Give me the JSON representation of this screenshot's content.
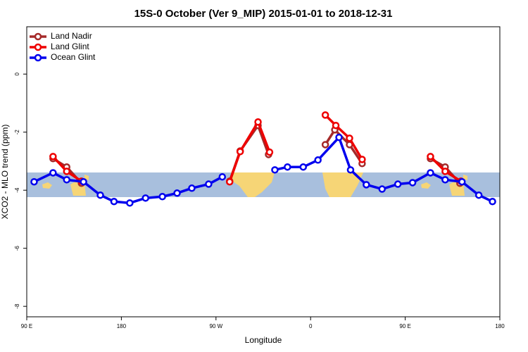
{
  "chart_data": {
    "type": "line",
    "title": "15S-0 October (Ver 9_MIP)   2015-01-01 to 2018-12-31",
    "x_label": "Longitude",
    "y_label": "XCO2 - MLO trend (ppm)",
    "xlim": [
      90,
      540
    ],
    "xticks": [
      {
        "value": 90,
        "label": "90 E"
      },
      180,
      {
        "value": 270,
        "label": "90 W"
      },
      {
        "value": 360,
        "label": "0"
      },
      {
        "value": 450,
        "label": "90 E"
      },
      {
        "value": 540,
        "label": "180"
      }
    ],
    "ylim": [
      -8.36,
      1.63
    ],
    "yticks": [
      0,
      -2,
      -4,
      -6,
      -8
    ],
    "legend": "top-left",
    "series": [
      {
        "name": "Land Nadir",
        "color": "#a52a2a",
        "x": [
          115,
          128,
          142,
          null,
          283,
          293,
          310,
          320,
          null,
          374,
          383,
          397,
          409,
          null,
          474,
          488,
          502
        ],
        "values": [
          -2.91,
          -3.2,
          -3.76,
          null,
          -3.69,
          -2.65,
          -1.77,
          -2.77,
          null,
          -2.43,
          -1.92,
          -2.43,
          -3.08,
          null,
          -2.91,
          -3.2,
          -3.76
        ]
      },
      {
        "name": "Land Glint",
        "color": "#ee0000",
        "x": [
          115,
          128,
          142,
          null,
          283,
          293,
          310,
          321,
          null,
          374,
          384,
          397,
          409,
          null,
          474,
          488,
          503
        ],
        "values": [
          -2.84,
          -3.35,
          -3.69,
          null,
          -3.71,
          -2.67,
          -1.65,
          -2.69,
          null,
          -1.41,
          -1.77,
          -2.21,
          -2.94,
          null,
          -2.84,
          -3.35,
          -3.69
        ]
      },
      {
        "name": "Ocean Glint",
        "color": "#0000ee",
        "x": [
          97,
          115,
          128,
          144,
          160,
          173,
          188,
          203,
          219,
          233,
          247,
          263,
          276,
          null,
          326,
          338,
          353,
          367,
          387,
          398,
          413,
          428,
          443,
          457,
          474,
          488,
          504,
          520,
          533
        ],
        "values": [
          -3.71,
          -3.4,
          -3.64,
          -3.71,
          -4.17,
          -4.39,
          -4.44,
          -4.27,
          -4.22,
          -4.1,
          -3.93,
          -3.79,
          -3.54,
          null,
          -3.3,
          -3.2,
          -3.2,
          -2.96,
          -2.18,
          -3.3,
          -3.81,
          -3.96,
          -3.79,
          -3.74,
          -3.4,
          -3.64,
          -3.71,
          -4.17,
          -4.39
        ]
      }
    ]
  }
}
